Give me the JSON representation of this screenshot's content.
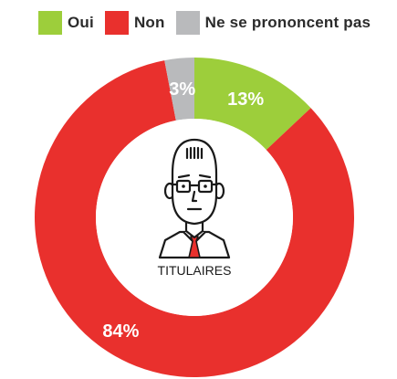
{
  "chart_data": {
    "type": "pie",
    "donut": true,
    "legend_position": "top",
    "center_label": "TITULAIRES",
    "series": [
      {
        "name": "Oui",
        "value": 13,
        "label": "13%",
        "color": "#9dce3b"
      },
      {
        "name": "Non",
        "value": 84,
        "label": "84%",
        "color": "#e9302d"
      },
      {
        "name": "Ne se prononcent pas",
        "value": 3,
        "label": "3%",
        "color": "#b9babc"
      }
    ]
  }
}
